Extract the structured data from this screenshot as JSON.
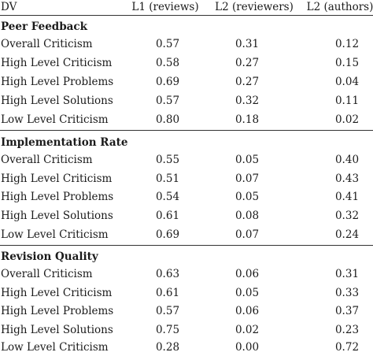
{
  "header": {
    "dv": "DV",
    "col1": "L1 (reviews)",
    "col2": "L2 (reviewers)",
    "col3": "L2 (authors)"
  },
  "sections": [
    {
      "title": "Peer Feedback",
      "rows": [
        {
          "label": "Overall Criticism",
          "l1": "0.57",
          "l2r": "0.31",
          "l2a": "0.12"
        },
        {
          "label": "High Level Criticism",
          "l1": "0.58",
          "l2r": "0.27",
          "l2a": "0.15"
        },
        {
          "label": "High Level Problems",
          "l1": "0.69",
          "l2r": "0.27",
          "l2a": "0.04"
        },
        {
          "label": "High Level Solutions",
          "l1": "0.57",
          "l2r": "0.32",
          "l2a": "0.11"
        },
        {
          "label": "Low Level Criticism",
          "l1": "0.80",
          "l2r": "0.18",
          "l2a": "0.02"
        }
      ]
    },
    {
      "title": "Implementation Rate",
      "rows": [
        {
          "label": "Overall Criticism",
          "l1": "0.55",
          "l2r": "0.05",
          "l2a": "0.40"
        },
        {
          "label": "High Level Criticism",
          "l1": "0.51",
          "l2r": "0.07",
          "l2a": "0.43"
        },
        {
          "label": "High Level Problems",
          "l1": "0.54",
          "l2r": "0.05",
          "l2a": "0.41"
        },
        {
          "label": "High Level Solutions",
          "l1": "0.61",
          "l2r": "0.08",
          "l2a": "0.32"
        },
        {
          "label": "Low Level Criticism",
          "l1": "0.69",
          "l2r": "0.07",
          "l2a": "0.24"
        }
      ]
    },
    {
      "title": "Revision Quality",
      "rows": [
        {
          "label": "Overall Criticism",
          "l1": "0.63",
          "l2r": "0.06",
          "l2a": "0.31"
        },
        {
          "label": "High Level Criticism",
          "l1": "0.61",
          "l2r": "0.05",
          "l2a": "0.33"
        },
        {
          "label": "High Level Problems",
          "l1": "0.57",
          "l2r": "0.06",
          "l2a": "0.37"
        },
        {
          "label": "High Level Solutions",
          "l1": "0.75",
          "l2r": "0.02",
          "l2a": "0.23"
        },
        {
          "label": "Low Level Criticism",
          "l1": "0.28",
          "l2r": "0.00",
          "l2a": "0.72"
        }
      ]
    }
  ]
}
